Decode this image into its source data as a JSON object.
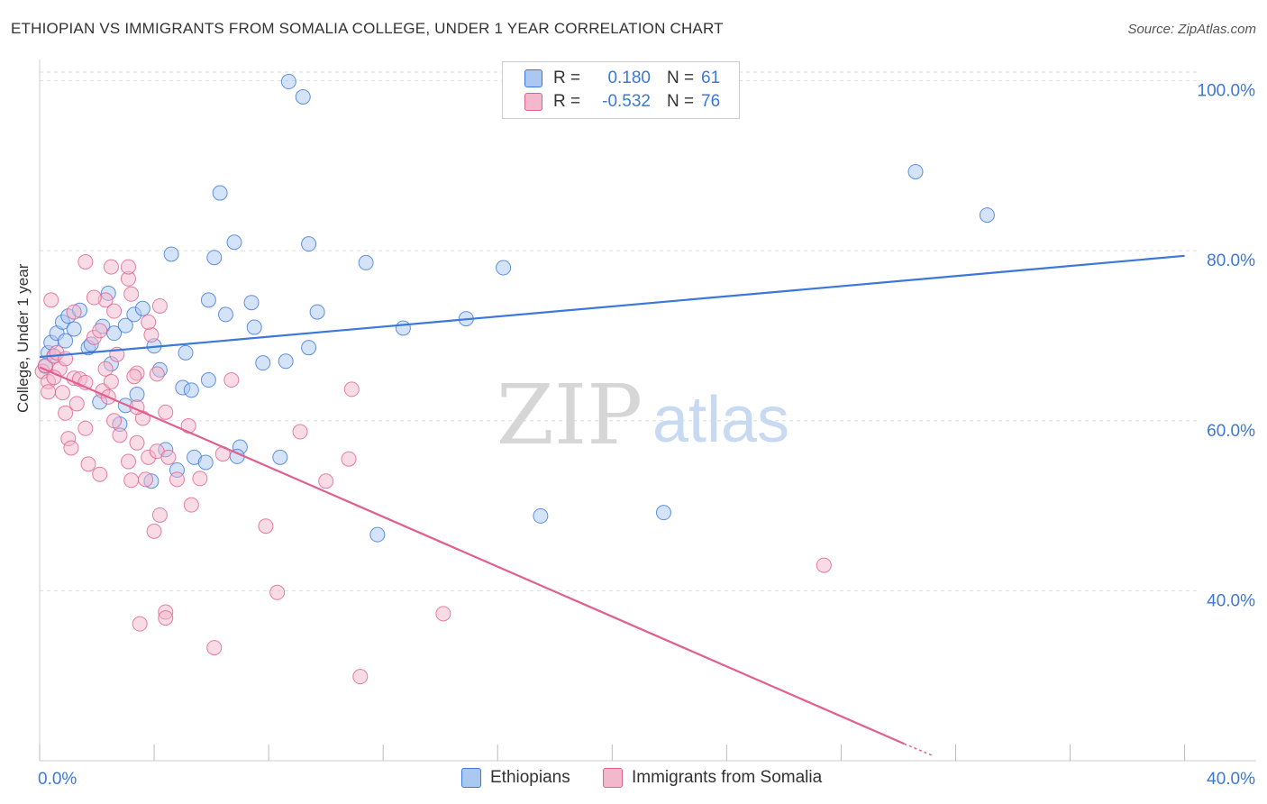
{
  "title": "ETHIOPIAN VS IMMIGRANTS FROM SOMALIA COLLEGE, UNDER 1 YEAR CORRELATION CHART",
  "source": "Source: ZipAtlas.com",
  "watermark": {
    "zip": "ZIP",
    "atlas": "atlas"
  },
  "colors": {
    "blue": "#3b78d8",
    "blue_fill": "#aac8f0",
    "pink": "#e0608e",
    "pink_fill": "#f4b8cc",
    "axis_label": "#3b78d8",
    "grid": "#dddddd"
  },
  "legend_top": [
    {
      "key": "R =",
      "r": "0.180",
      "nkey": "N =",
      "n": "61"
    },
    {
      "key": "R =",
      "r": "-0.532",
      "nkey": "N =",
      "n": "76"
    }
  ],
  "legend_bottom": [
    "Ethiopians",
    "Immigrants from Somalia"
  ],
  "chart_data": {
    "type": "scatter",
    "title": "ETHIOPIAN VS IMMIGRANTS FROM SOMALIA COLLEGE, UNDER 1 YEAR CORRELATION CHART",
    "xlabel": "",
    "ylabel": "College, Under 1 year",
    "xlim": [
      0,
      42.5
    ],
    "ylim": [
      20,
      102.5
    ],
    "x_tick_labels": {
      "left": "0.0%",
      "right": "40.0%"
    },
    "y_ticks": [
      {
        "value": 100,
        "label": "100.0%"
      },
      {
        "value": 80,
        "label": "80.0%"
      },
      {
        "value": 60,
        "label": "60.0%"
      },
      {
        "value": 40,
        "label": "40.0%"
      }
    ],
    "x_minor_ticks": [
      0,
      4,
      8,
      12,
      16,
      20,
      24,
      28,
      32,
      36,
      40
    ],
    "series": [
      {
        "name": "Ethiopians",
        "R": 0.18,
        "N": 61,
        "trend": {
          "x": [
            0,
            40
          ],
          "y": [
            67.5,
            79.4
          ]
        },
        "points": [
          [
            0.3,
            68.0
          ],
          [
            0.4,
            69.2
          ],
          [
            0.6,
            70.3
          ],
          [
            0.8,
            71.6
          ],
          [
            1.0,
            72.3
          ],
          [
            1.2,
            70.8
          ],
          [
            1.4,
            73.0
          ],
          [
            0.9,
            69.4
          ],
          [
            1.7,
            68.6
          ],
          [
            2.2,
            71.1
          ],
          [
            2.6,
            70.3
          ],
          [
            2.4,
            75.0
          ],
          [
            3.0,
            71.2
          ],
          [
            3.3,
            72.5
          ],
          [
            3.6,
            73.2
          ],
          [
            4.0,
            68.8
          ],
          [
            4.2,
            66.0
          ],
          [
            3.4,
            63.1
          ],
          [
            5.0,
            63.9
          ],
          [
            5.3,
            63.6
          ],
          [
            5.9,
            64.8
          ],
          [
            5.1,
            68.0
          ],
          [
            2.1,
            62.2
          ],
          [
            2.8,
            59.6
          ],
          [
            3.0,
            61.8
          ],
          [
            4.4,
            56.6
          ],
          [
            4.8,
            54.2
          ],
          [
            5.4,
            55.7
          ],
          [
            5.8,
            55.1
          ],
          [
            3.9,
            52.9
          ],
          [
            4.6,
            79.6
          ],
          [
            6.1,
            79.2
          ],
          [
            6.8,
            81.0
          ],
          [
            6.3,
            86.8
          ],
          [
            5.9,
            74.2
          ],
          [
            6.5,
            72.5
          ],
          [
            7.4,
            73.9
          ],
          [
            7.5,
            71.0
          ],
          [
            7.8,
            66.8
          ],
          [
            8.6,
            67.0
          ],
          [
            9.4,
            68.6
          ],
          [
            9.7,
            72.8
          ],
          [
            7.0,
            56.9
          ],
          [
            6.9,
            55.8
          ],
          [
            8.4,
            55.7
          ],
          [
            9.4,
            80.8
          ],
          [
            11.4,
            78.6
          ],
          [
            12.7,
            70.9
          ],
          [
            14.9,
            72.0
          ],
          [
            16.2,
            78.0
          ],
          [
            8.7,
            99.9
          ],
          [
            9.2,
            98.1
          ],
          [
            17.5,
            48.8
          ],
          [
            21.8,
            49.2
          ],
          [
            11.8,
            46.6
          ],
          [
            30.6,
            89.3
          ],
          [
            33.1,
            84.2
          ],
          [
            0.2,
            66.4
          ],
          [
            1.8,
            69.0
          ],
          [
            0.5,
            67.6
          ],
          [
            2.5,
            66.7
          ]
        ]
      },
      {
        "name": "Immigrants from Somalia",
        "R": -0.532,
        "N": 76,
        "trend": {
          "x": [
            0,
            30.2
          ],
          "y": [
            66.3,
            22.0
          ]
        },
        "trend_dashed": {
          "x": [
            30.2,
            31.2
          ],
          "y": [
            22.0,
            20.6
          ]
        },
        "points": [
          [
            0.1,
            65.8
          ],
          [
            0.2,
            66.5
          ],
          [
            0.3,
            64.6
          ],
          [
            0.5,
            67.6
          ],
          [
            0.7,
            66.1
          ],
          [
            0.8,
            63.3
          ],
          [
            0.9,
            60.9
          ],
          [
            1.2,
            65.0
          ],
          [
            1.3,
            62.0
          ],
          [
            1.0,
            57.9
          ],
          [
            1.1,
            56.8
          ],
          [
            1.4,
            64.9
          ],
          [
            1.6,
            59.1
          ],
          [
            1.7,
            54.9
          ],
          [
            2.1,
            53.7
          ],
          [
            2.2,
            63.5
          ],
          [
            2.3,
            66.1
          ],
          [
            2.6,
            60.0
          ],
          [
            2.8,
            58.3
          ],
          [
            3.1,
            55.2
          ],
          [
            3.2,
            53.0
          ],
          [
            3.4,
            57.4
          ],
          [
            3.6,
            60.3
          ],
          [
            3.8,
            55.7
          ],
          [
            3.7,
            53.1
          ],
          [
            4.1,
            56.4
          ],
          [
            4.2,
            48.9
          ],
          [
            4.5,
            55.7
          ],
          [
            4.8,
            53.1
          ],
          [
            5.3,
            50.1
          ],
          [
            5.2,
            59.4
          ],
          [
            5.6,
            53.2
          ],
          [
            6.4,
            56.1
          ],
          [
            6.1,
            33.3
          ],
          [
            6.7,
            64.8
          ],
          [
            7.9,
            47.6
          ],
          [
            8.3,
            39.8
          ],
          [
            9.1,
            58.7
          ],
          [
            10.0,
            52.9
          ],
          [
            10.9,
            63.7
          ],
          [
            10.8,
            55.5
          ],
          [
            11.2,
            29.9
          ],
          [
            14.1,
            37.3
          ],
          [
            27.4,
            43.0
          ],
          [
            3.5,
            36.1
          ],
          [
            4.4,
            37.5
          ],
          [
            4.4,
            36.8
          ],
          [
            4.0,
            47.0
          ],
          [
            1.6,
            78.7
          ],
          [
            2.3,
            74.2
          ],
          [
            3.1,
            76.7
          ],
          [
            3.2,
            74.9
          ],
          [
            3.9,
            70.1
          ],
          [
            4.2,
            73.5
          ],
          [
            2.6,
            72.9
          ],
          [
            1.9,
            69.8
          ],
          [
            1.2,
            72.8
          ],
          [
            2.1,
            70.6
          ],
          [
            3.4,
            65.6
          ],
          [
            4.1,
            65.5
          ],
          [
            2.7,
            67.8
          ],
          [
            0.4,
            74.2
          ],
          [
            0.6,
            68.0
          ],
          [
            0.3,
            63.4
          ],
          [
            1.6,
            64.5
          ],
          [
            2.5,
            64.6
          ],
          [
            3.3,
            65.2
          ],
          [
            3.4,
            61.6
          ],
          [
            4.4,
            61.0
          ],
          [
            2.4,
            62.8
          ],
          [
            0.9,
            67.3
          ],
          [
            0.5,
            65.1
          ],
          [
            3.8,
            71.6
          ],
          [
            1.9,
            74.5
          ],
          [
            2.5,
            78.1
          ],
          [
            3.1,
            78.1
          ]
        ]
      }
    ]
  },
  "gridlines_visible": true
}
